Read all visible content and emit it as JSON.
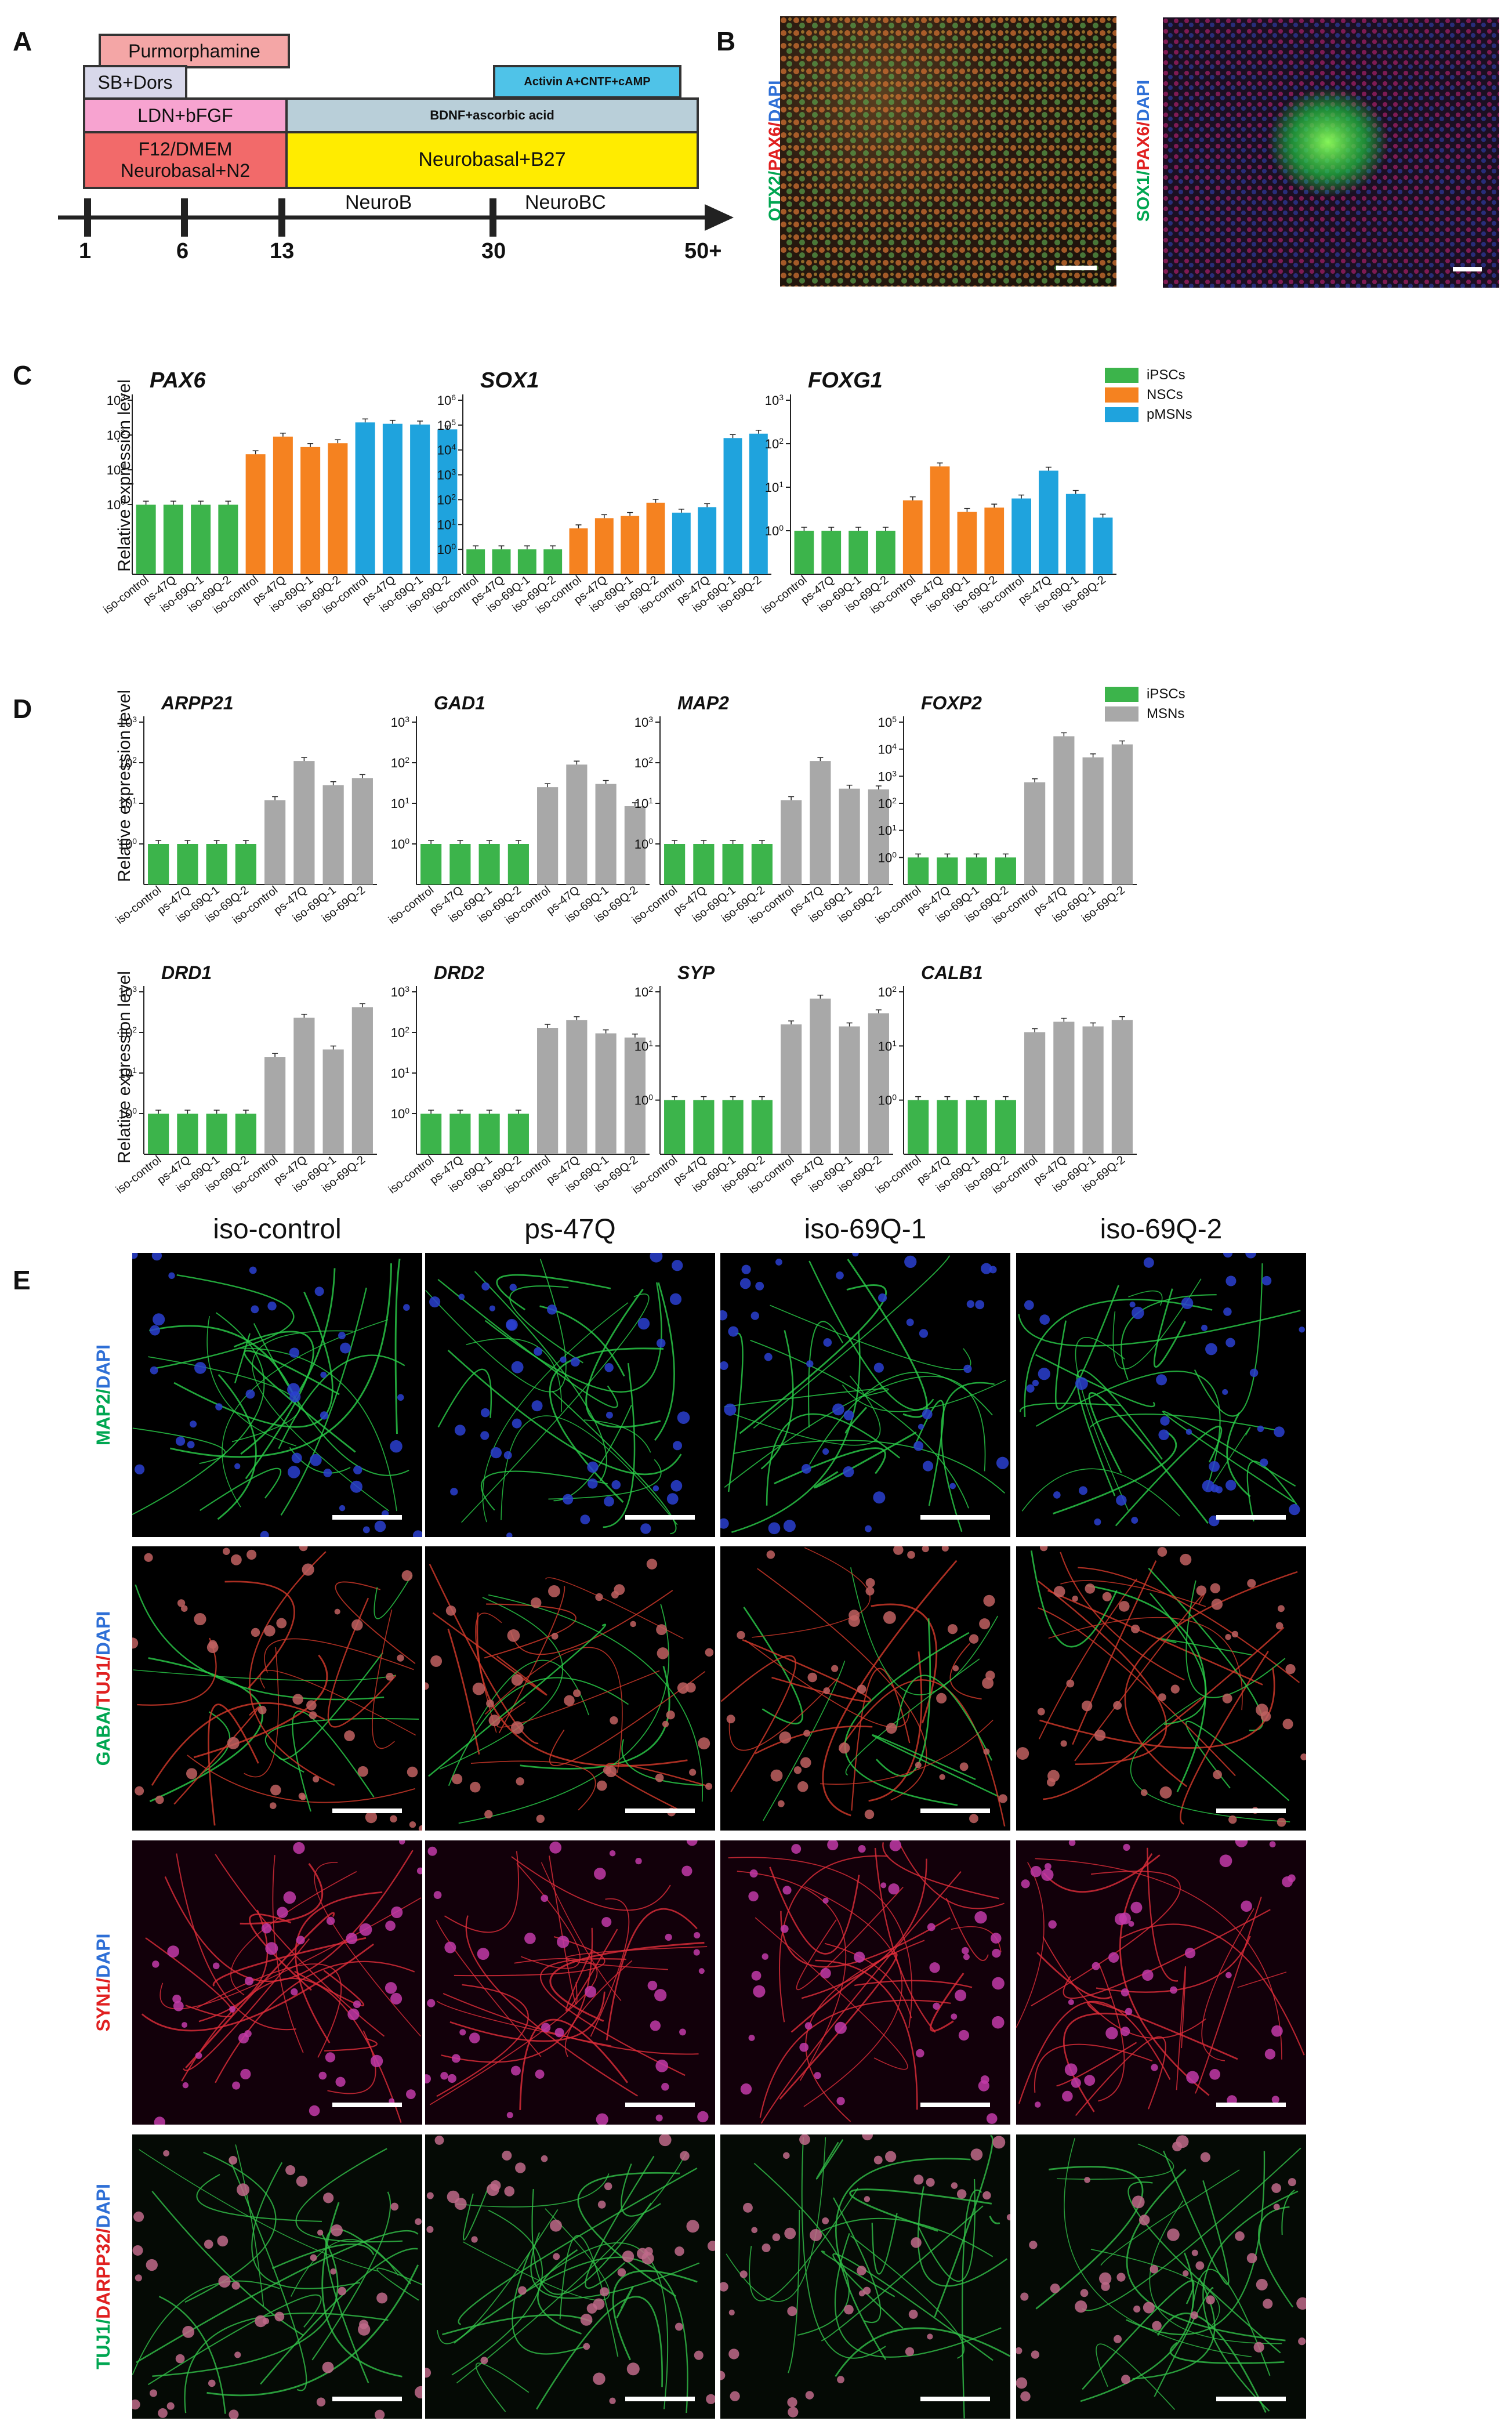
{
  "panel_letters": {
    "A": "A",
    "B": "B",
    "C": "C",
    "D": "D",
    "E": "E"
  },
  "timeline": {
    "boxes": {
      "purmorphamine": "Purmorphamine",
      "sb_dors": "SB+Dors",
      "ldn_bfgf": "LDN+bFGF",
      "f12": "F12/DMEM\nNeurobasal+N2",
      "bdnf": "BDNF+ascorbic acid",
      "neurobasal_b27": "Neurobasal+B27",
      "activin": "Activin A+CNTF+cAMP"
    },
    "box_colors": {
      "purmorphamine": "#f4a6a6",
      "sb_dors": "#d8d8ea",
      "ldn_bfgf": "#f7a3d0",
      "f12": "#f26a6a",
      "bdnf": "#b9cfd9",
      "neurobasal_b27": "#ffec00",
      "activin": "#4fc3e8"
    },
    "stages": {
      "neurob": "NeuroB",
      "neurobc": "NeuroBC"
    },
    "days": [
      "1",
      "6",
      "13",
      "30",
      "50+"
    ]
  },
  "panel_b": {
    "label1": {
      "ch1": "OTX2",
      "sep1": "/",
      "ch2": "PAX6",
      "sep2": "/",
      "ch3": "DAPI"
    },
    "label2": {
      "ch1": "SOX1",
      "sep1": "/",
      "ch2": "PAX6",
      "sep2": "/",
      "ch3": "DAPI"
    }
  },
  "panel_c": {
    "ylabel": "Relative expression level",
    "legend": [
      {
        "name": "iPSCs",
        "color": "#3cb44b"
      },
      {
        "name": "NSCs",
        "color": "#f58220"
      },
      {
        "name": "pMSNs",
        "color": "#1fa3dd"
      }
    ]
  },
  "panel_d": {
    "ylabel": "Relative expression level",
    "legend": [
      {
        "name": "iPSCs",
        "color": "#3cb44b"
      },
      {
        "name": "MSNs",
        "color": "#a8a8a8"
      }
    ]
  },
  "chart_data": [
    {
      "type": "bar",
      "title": "PAX6",
      "ylabel": "Relative expression level",
      "scale": "log",
      "ylim": [
        0.01,
        1000
      ],
      "categories": [
        "iso-control",
        "ps-47Q",
        "iso-69Q-1",
        "iso-69Q-2",
        "iso-control",
        "ps-47Q",
        "iso-69Q-1",
        "iso-69Q-2",
        "iso-control",
        "ps-47Q",
        "iso-69Q-1",
        "iso-69Q-2"
      ],
      "groups": [
        "iPSCs",
        "iPSCs",
        "iPSCs",
        "iPSCs",
        "NSCs",
        "NSCs",
        "NSCs",
        "NSCs",
        "pMSNs",
        "pMSNs",
        "pMSNs",
        "pMSNs"
      ],
      "values": [
        1,
        1,
        1,
        1,
        28,
        90,
        45,
        58,
        230,
        210,
        200,
        145
      ],
      "ticks": [
        {
          "v": 1,
          "label": "10^0"
        },
        {
          "v": 10,
          "label": "10^1"
        },
        {
          "v": 100,
          "label": "10^2"
        },
        {
          "v": 1000,
          "label": "10^3"
        }
      ]
    },
    {
      "type": "bar",
      "title": "SOX1",
      "ylabel": "",
      "scale": "log",
      "ylim": [
        0.1,
        1000000
      ],
      "categories": [
        "iso-control",
        "ps-47Q",
        "iso-69Q-1",
        "iso-69Q-2",
        "iso-control",
        "ps-47Q",
        "iso-69Q-1",
        "iso-69Q-2",
        "iso-control",
        "ps-47Q",
        "iso-69Q-1",
        "iso-69Q-2"
      ],
      "groups": [
        "iPSCs",
        "iPSCs",
        "iPSCs",
        "iPSCs",
        "NSCs",
        "NSCs",
        "NSCs",
        "NSCs",
        "pMSNs",
        "pMSNs",
        "pMSNs",
        "pMSNs"
      ],
      "values": [
        1,
        1,
        1,
        1,
        7,
        18,
        22,
        75,
        30,
        50,
        30000,
        45000
      ],
      "ticks": [
        {
          "v": 1,
          "label": "10^0"
        },
        {
          "v": 10,
          "label": "10^1"
        },
        {
          "v": 100,
          "label": "10^2"
        },
        {
          "v": 1000,
          "label": "10^3"
        },
        {
          "v": 10000,
          "label": "10^4"
        },
        {
          "v": 100000,
          "label": "10^5"
        },
        {
          "v": 1000000,
          "label": "10^6"
        }
      ]
    },
    {
      "type": "bar",
      "title": "FOXG1",
      "ylabel": "",
      "scale": "log",
      "ylim": [
        0.1,
        1000
      ],
      "categories": [
        "iso-control",
        "ps-47Q",
        "iso-69Q-1",
        "iso-69Q-2",
        "iso-control",
        "ps-47Q",
        "iso-69Q-1",
        "iso-69Q-2",
        "iso-control",
        "ps-47Q",
        "iso-69Q-1",
        "iso-69Q-2"
      ],
      "groups": [
        "iPSCs",
        "iPSCs",
        "iPSCs",
        "iPSCs",
        "NSCs",
        "NSCs",
        "NSCs",
        "NSCs",
        "pMSNs",
        "pMSNs",
        "pMSNs",
        "pMSNs"
      ],
      "values": [
        1,
        1,
        1,
        1,
        5,
        30,
        2.7,
        3.4,
        5.5,
        24,
        7,
        2
      ],
      "ticks": [
        {
          "v": 1,
          "label": "10^0"
        },
        {
          "v": 10,
          "label": "10^1"
        },
        {
          "v": 100,
          "label": "10^2"
        },
        {
          "v": 1000,
          "label": "10^3"
        }
      ]
    },
    {
      "type": "bar",
      "title": "ARPP21",
      "ylabel": "Relative expression level",
      "scale": "log",
      "ylim": [
        0.1,
        1000
      ],
      "categories": [
        "iso-control",
        "ps-47Q",
        "iso-69Q-1",
        "iso-69Q-2",
        "iso-control",
        "ps-47Q",
        "iso-69Q-1",
        "iso-69Q-2"
      ],
      "groups": [
        "iPSCs",
        "iPSCs",
        "iPSCs",
        "iPSCs",
        "MSNs",
        "MSNs",
        "MSNs",
        "MSNs"
      ],
      "values": [
        1,
        1,
        1,
        1,
        12,
        110,
        28,
        42
      ],
      "ticks": [
        {
          "v": 1,
          "label": "10^0"
        },
        {
          "v": 10,
          "label": "10^1"
        },
        {
          "v": 100,
          "label": "10^2"
        },
        {
          "v": 1000,
          "label": "10^3"
        }
      ]
    },
    {
      "type": "bar",
      "title": "GAD1",
      "ylabel": "",
      "scale": "log",
      "ylim": [
        0.1,
        1000
      ],
      "categories": [
        "iso-control",
        "ps-47Q",
        "iso-69Q-1",
        "iso-69Q-2",
        "iso-control",
        "ps-47Q",
        "iso-69Q-1",
        "iso-69Q-2"
      ],
      "groups": [
        "iPSCs",
        "iPSCs",
        "iPSCs",
        "iPSCs",
        "MSNs",
        "MSNs",
        "MSNs",
        "MSNs"
      ],
      "values": [
        1,
        1,
        1,
        1,
        25,
        90,
        30,
        8.5
      ],
      "ticks": [
        {
          "v": 1,
          "label": "10^0"
        },
        {
          "v": 10,
          "label": "10^1"
        },
        {
          "v": 100,
          "label": "10^2"
        },
        {
          "v": 1000,
          "label": "10^3"
        }
      ]
    },
    {
      "type": "bar",
      "title": "MAP2",
      "ylabel": "",
      "scale": "log",
      "ylim": [
        0.1,
        1000
      ],
      "categories": [
        "iso-control",
        "ps-47Q",
        "iso-69Q-1",
        "iso-69Q-2",
        "iso-control",
        "ps-47Q",
        "iso-69Q-1",
        "iso-69Q-2"
      ],
      "groups": [
        "iPSCs",
        "iPSCs",
        "iPSCs",
        "iPSCs",
        "MSNs",
        "MSNs",
        "MSNs",
        "MSNs"
      ],
      "values": [
        1,
        1,
        1,
        1,
        12,
        110,
        23,
        22
      ],
      "ticks": [
        {
          "v": 1,
          "label": "10^0"
        },
        {
          "v": 10,
          "label": "10^1"
        },
        {
          "v": 100,
          "label": "10^2"
        },
        {
          "v": 1000,
          "label": "10^3"
        }
      ]
    },
    {
      "type": "bar",
      "title": "FOXP2",
      "ylabel": "",
      "scale": "log",
      "ylim": [
        0.1,
        100000
      ],
      "categories": [
        "iso-control",
        "ps-47Q",
        "iso-69Q-1",
        "iso-69Q-2",
        "iso-control",
        "ps-47Q",
        "iso-69Q-1",
        "iso-69Q-2"
      ],
      "groups": [
        "iPSCs",
        "iPSCs",
        "iPSCs",
        "iPSCs",
        "MSNs",
        "MSNs",
        "MSNs",
        "MSNs"
      ],
      "values": [
        1,
        1,
        1,
        1,
        600,
        30000,
        5000,
        15000
      ],
      "ticks": [
        {
          "v": 1,
          "label": "10^0"
        },
        {
          "v": 10,
          "label": "10^1"
        },
        {
          "v": 100,
          "label": "10^2"
        },
        {
          "v": 1000,
          "label": "10^3"
        },
        {
          "v": 10000,
          "label": "10^4"
        },
        {
          "v": 100000,
          "label": "10^5"
        }
      ]
    },
    {
      "type": "bar",
      "title": "DRD1",
      "ylabel": "Relative expression level",
      "scale": "log",
      "ylim": [
        0.1,
        1000
      ],
      "categories": [
        "iso-control",
        "ps-47Q",
        "iso-69Q-1",
        "iso-69Q-2",
        "iso-control",
        "ps-47Q",
        "iso-69Q-1",
        "iso-69Q-2"
      ],
      "groups": [
        "iPSCs",
        "iPSCs",
        "iPSCs",
        "iPSCs",
        "MSNs",
        "MSNs",
        "MSNs",
        "MSNs"
      ],
      "values": [
        1,
        1,
        1,
        1,
        25,
        230,
        38,
        420
      ],
      "ticks": [
        {
          "v": 1,
          "label": "10^0"
        },
        {
          "v": 10,
          "label": "10^1"
        },
        {
          "v": 100,
          "label": "10^2"
        },
        {
          "v": 1000,
          "label": "10^3"
        }
      ]
    },
    {
      "type": "bar",
      "title": "DRD2",
      "ylabel": "",
      "scale": "log",
      "ylim": [
        0.1,
        1000
      ],
      "categories": [
        "iso-control",
        "ps-47Q",
        "iso-69Q-1",
        "iso-69Q-2",
        "iso-control",
        "ps-47Q",
        "iso-69Q-1",
        "iso-69Q-2"
      ],
      "groups": [
        "iPSCs",
        "iPSCs",
        "iPSCs",
        "iPSCs",
        "MSNs",
        "MSNs",
        "MSNs",
        "MSNs"
      ],
      "values": [
        1,
        1,
        1,
        1,
        130,
        200,
        95,
        75
      ],
      "ticks": [
        {
          "v": 1,
          "label": "10^0"
        },
        {
          "v": 10,
          "label": "10^1"
        },
        {
          "v": 100,
          "label": "10^2"
        },
        {
          "v": 1000,
          "label": "10^3"
        }
      ]
    },
    {
      "type": "bar",
      "title": "SYP",
      "ylabel": "",
      "scale": "log",
      "ylim": [
        0.1,
        100
      ],
      "categories": [
        "iso-control",
        "ps-47Q",
        "iso-69Q-1",
        "iso-69Q-2",
        "iso-control",
        "ps-47Q",
        "iso-69Q-1",
        "iso-69Q-2"
      ],
      "groups": [
        "iPSCs",
        "iPSCs",
        "iPSCs",
        "iPSCs",
        "MSNs",
        "MSNs",
        "MSNs",
        "MSNs"
      ],
      "values": [
        1,
        1,
        1,
        1,
        25,
        75,
        23,
        40
      ],
      "ticks": [
        {
          "v": 1,
          "label": "10^0"
        },
        {
          "v": 10,
          "label": "10^1"
        },
        {
          "v": 100,
          "label": "10^2"
        }
      ]
    },
    {
      "type": "bar",
      "title": "CALB1",
      "ylabel": "",
      "scale": "log",
      "ylim": [
        0.1,
        100
      ],
      "categories": [
        "iso-control",
        "ps-47Q",
        "iso-69Q-1",
        "iso-69Q-2",
        "iso-control",
        "ps-47Q",
        "iso-69Q-1",
        "iso-69Q-2"
      ],
      "groups": [
        "iPSCs",
        "iPSCs",
        "iPSCs",
        "iPSCs",
        "MSNs",
        "MSNs",
        "MSNs",
        "MSNs"
      ],
      "values": [
        1,
        1,
        1,
        1,
        18,
        28,
        23,
        30
      ],
      "ticks": [
        {
          "v": 1,
          "label": "10^0"
        },
        {
          "v": 10,
          "label": "10^1"
        },
        {
          "v": 100,
          "label": "10^2"
        }
      ]
    }
  ],
  "panel_e": {
    "columns": [
      "iso-control",
      "ps-47Q",
      "iso-69Q-1",
      "iso-69Q-2"
    ],
    "rows": [
      {
        "parts": [
          {
            "t": "MAP2",
            "c": "#00a651"
          },
          {
            "t": "/",
            "c": "#00a651"
          },
          {
            "t": "DAPI",
            "c": "#2e6fd6"
          }
        ]
      },
      {
        "parts": [
          {
            "t": "GABA",
            "c": "#00a651"
          },
          {
            "t": "/",
            "c": "#00a651"
          },
          {
            "t": "TUJ1",
            "c": "#e02020"
          },
          {
            "t": "/",
            "c": "#e02020"
          },
          {
            "t": "DAPI",
            "c": "#2e6fd6"
          }
        ]
      },
      {
        "parts": [
          {
            "t": "SYN1",
            "c": "#e02020"
          },
          {
            "t": "/",
            "c": "#e02020"
          },
          {
            "t": "DAPI",
            "c": "#2e6fd6"
          }
        ]
      },
      {
        "parts": [
          {
            "t": "TUJ1",
            "c": "#00a651"
          },
          {
            "t": "/",
            "c": "#00a651"
          },
          {
            "t": "DARPP32",
            "c": "#e02020"
          },
          {
            "t": "/",
            "c": "#e02020"
          },
          {
            "t": "DAPI",
            "c": "#2e6fd6"
          }
        ]
      }
    ]
  }
}
